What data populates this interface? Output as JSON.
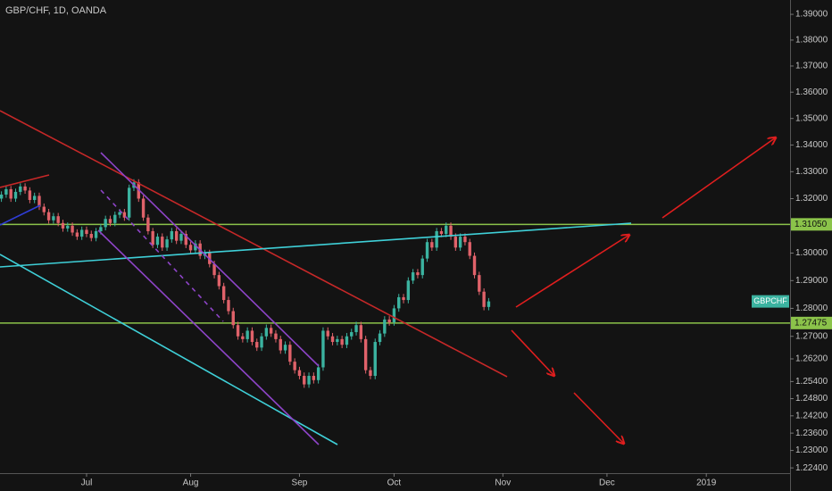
{
  "chart_data": {
    "type": "candlestick",
    "title": "GBP/CHF, 1D, OANDA",
    "log_scale": true,
    "grid": false,
    "up_color": "#3bb3a0",
    "down_color": "#e0626a",
    "level_color": "#8bc34a",
    "xlim": [
      -0.3,
      166.7
    ],
    "xticks": [
      {
        "value": 18,
        "label": "Jul"
      },
      {
        "value": 40,
        "label": "Aug"
      },
      {
        "value": 63,
        "label": "Sep"
      },
      {
        "value": 83,
        "label": "Oct"
      },
      {
        "value": 106,
        "label": "Nov"
      },
      {
        "value": 128,
        "label": "Dec"
      },
      {
        "value": 149,
        "label": "2019"
      }
    ],
    "ylim": [
      1.2222,
      1.3956
    ],
    "yticks": [
      {
        "value": 1.39,
        "label": "1.39000"
      },
      {
        "value": 1.38,
        "label": "1.38000"
      },
      {
        "value": 1.37,
        "label": "1.37000"
      },
      {
        "value": 1.36,
        "label": "1.36000"
      },
      {
        "value": 1.35,
        "label": "1.35000"
      },
      {
        "value": 1.34,
        "label": "1.34000"
      },
      {
        "value": 1.33,
        "label": "1.33000"
      },
      {
        "value": 1.32,
        "label": "1.32000"
      },
      {
        "value": 1.3,
        "label": "1.30000"
      },
      {
        "value": 1.29,
        "label": "1.29000"
      },
      {
        "value": 1.28,
        "label": "1.28000"
      },
      {
        "value": 1.27,
        "label": "1.27000"
      },
      {
        "value": 1.262,
        "label": "1.26200"
      },
      {
        "value": 1.254,
        "label": "1.25400"
      },
      {
        "value": 1.248,
        "label": "1.24800"
      },
      {
        "value": 1.242,
        "label": "1.24200"
      },
      {
        "value": 1.236,
        "label": "1.23600"
      },
      {
        "value": 1.23,
        "label": "1.23000"
      },
      {
        "value": 1.224,
        "label": "1.22400"
      }
    ],
    "levels": [
      {
        "value": 1.3105,
        "label": "1.31050"
      },
      {
        "value": 1.27475,
        "label": "1.27475"
      }
    ],
    "symbol": "GBPCHF",
    "open": [
      1.32,
      1.3215,
      1.3235,
      1.32,
      1.3225,
      1.3245,
      1.323,
      1.3195,
      1.321,
      1.317,
      1.315,
      1.312,
      1.3135,
      1.311,
      1.309,
      1.31,
      1.3075,
      1.306,
      1.3085,
      1.307,
      1.3055,
      1.308,
      1.3095,
      1.3125,
      1.311,
      1.314,
      1.315,
      1.313,
      1.324,
      1.326,
      1.32,
      1.313,
      1.308,
      1.303,
      1.306,
      1.302,
      1.305,
      1.308,
      1.3045,
      1.307,
      1.303,
      1.301,
      1.3035,
      1.299,
      1.3,
      1.296,
      1.292,
      1.288,
      1.283,
      1.279,
      1.274,
      1.27,
      1.269,
      1.272,
      1.268,
      1.266,
      1.27,
      1.273,
      1.271,
      1.269,
      1.265,
      1.267,
      1.261,
      1.258,
      1.256,
      1.253,
      1.256,
      1.2545,
      1.259,
      1.272,
      1.27,
      1.268,
      1.269,
      1.267,
      1.27,
      1.2715,
      1.274,
      1.269,
      1.258,
      1.256,
      1.268,
      1.271,
      1.276,
      1.275,
      1.28,
      1.284,
      1.283,
      1.29,
      1.293,
      1.292,
      1.298,
      1.304,
      1.302,
      1.308,
      1.307,
      1.31,
      1.306,
      1.302,
      1.306,
      1.304,
      1.299,
      1.292,
      1.286,
      1.2805
    ],
    "high": [
      1.3227,
      1.3247,
      1.3247,
      1.3237,
      1.3257,
      1.3257,
      1.3242,
      1.3222,
      1.3222,
      1.3182,
      1.3162,
      1.3147,
      1.3147,
      1.3122,
      1.3112,
      1.3112,
      1.3087,
      1.3097,
      1.3097,
      1.3082,
      1.3092,
      1.3107,
      1.3137,
      1.3137,
      1.3152,
      1.3162,
      1.3162,
      1.3252,
      1.3272,
      1.3272,
      1.3212,
      1.3142,
      1.3092,
      1.3072,
      1.3072,
      1.3062,
      1.3092,
      1.3092,
      1.3082,
      1.3082,
      1.3042,
      1.3047,
      1.3047,
      1.3012,
      1.3012,
      1.2972,
      1.2932,
      1.2892,
      1.2842,
      1.2802,
      1.2752,
      1.2712,
      1.2732,
      1.2732,
      1.2692,
      1.2712,
      1.2742,
      1.2742,
      1.2722,
      1.2702,
      1.2682,
      1.2682,
      1.2622,
      1.2592,
      1.2572,
      1.2572,
      1.2572,
      1.2602,
      1.2732,
      1.2732,
      1.2712,
      1.2702,
      1.2702,
      1.2712,
      1.2727,
      1.2752,
      1.2752,
      1.2702,
      1.2592,
      1.2692,
      1.2722,
      1.2772,
      1.2772,
      1.2812,
      1.2852,
      1.2852,
      1.2912,
      1.2942,
      1.2942,
      1.2992,
      1.3052,
      1.3052,
      1.3092,
      1.3092,
      1.3112,
      1.3112,
      1.3072,
      1.3072,
      1.3072,
      1.3052,
      1.3002,
      1.2932,
      1.2872,
      1.2837
    ],
    "low": [
      1.3188,
      1.3203,
      1.3188,
      1.3188,
      1.3213,
      1.3218,
      1.3183,
      1.3183,
      1.3158,
      1.3138,
      1.3108,
      1.3108,
      1.3098,
      1.3078,
      1.3078,
      1.3063,
      1.3048,
      1.3048,
      1.3058,
      1.3043,
      1.3043,
      1.3068,
      1.3083,
      1.3098,
      1.3098,
      1.3128,
      1.3118,
      1.3118,
      1.3228,
      1.3188,
      1.3118,
      1.3068,
      1.3018,
      1.3018,
      1.3008,
      1.3008,
      1.3038,
      1.3033,
      1.3033,
      1.3018,
      1.2998,
      1.2998,
      1.2978,
      1.2978,
      1.2948,
      1.2908,
      1.2868,
      1.2818,
      1.2778,
      1.2728,
      1.2688,
      1.2678,
      1.2678,
      1.2668,
      1.2648,
      1.2648,
      1.2688,
      1.2698,
      1.2678,
      1.2638,
      1.2638,
      1.2598,
      1.2568,
      1.2548,
      1.2518,
      1.2518,
      1.2533,
      1.2533,
      1.2578,
      1.2688,
      1.2668,
      1.2668,
      1.2658,
      1.2658,
      1.2688,
      1.2703,
      1.2678,
      1.2568,
      1.2548,
      1.2548,
      1.2668,
      1.2698,
      1.2738,
      1.2738,
      1.2788,
      1.2818,
      1.2818,
      1.2888,
      1.2908,
      1.2908,
      1.2968,
      1.3008,
      1.3008,
      1.3058,
      1.3058,
      1.3048,
      1.3008,
      1.3008,
      1.3028,
      1.2978,
      1.2908,
      1.2848,
      1.2793,
      1.2793
    ],
    "close": [
      1.3215,
      1.3235,
      1.32,
      1.3225,
      1.3245,
      1.323,
      1.3195,
      1.321,
      1.317,
      1.315,
      1.312,
      1.3135,
      1.311,
      1.309,
      1.31,
      1.3075,
      1.306,
      1.3085,
      1.307,
      1.3055,
      1.308,
      1.3095,
      1.3125,
      1.311,
      1.314,
      1.315,
      1.313,
      1.324,
      1.326,
      1.32,
      1.313,
      1.308,
      1.303,
      1.306,
      1.302,
      1.305,
      1.308,
      1.3045,
      1.307,
      1.303,
      1.301,
      1.3035,
      1.299,
      1.3,
      1.296,
      1.292,
      1.288,
      1.283,
      1.279,
      1.274,
      1.27,
      1.269,
      1.272,
      1.268,
      1.266,
      1.27,
      1.273,
      1.271,
      1.269,
      1.265,
      1.267,
      1.261,
      1.258,
      1.256,
      1.253,
      1.256,
      1.2545,
      1.259,
      1.272,
      1.27,
      1.268,
      1.269,
      1.267,
      1.27,
      1.2715,
      1.274,
      1.269,
      1.258,
      1.256,
      1.268,
      1.271,
      1.276,
      1.275,
      1.28,
      1.284,
      1.283,
      1.29,
      1.293,
      1.292,
      1.298,
      1.304,
      1.302,
      1.308,
      1.307,
      1.31,
      1.306,
      1.302,
      1.306,
      1.304,
      1.299,
      1.292,
      1.286,
      1.2805,
      1.2825
    ]
  }
}
